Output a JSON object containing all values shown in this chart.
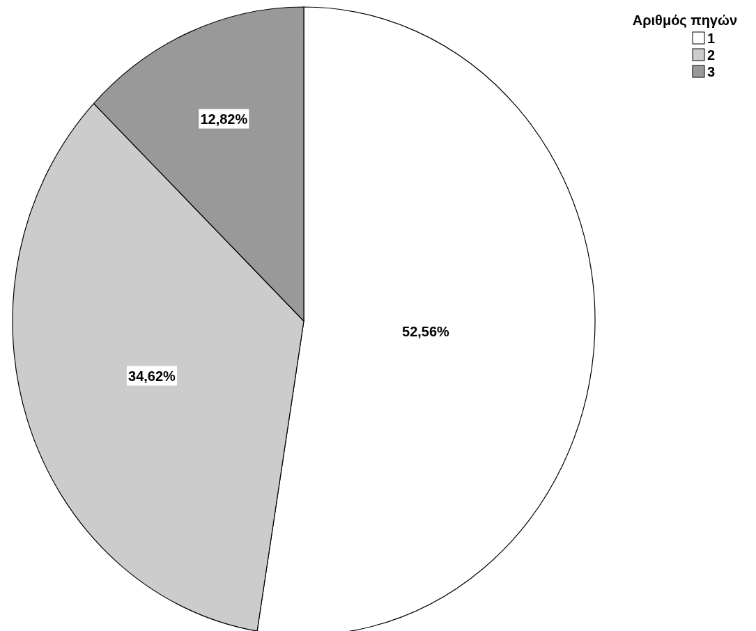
{
  "chart_data": {
    "type": "pie",
    "legend_title": "Αριθμός πηγών",
    "categories": [
      "1",
      "2",
      "3"
    ],
    "values": [
      52.56,
      34.62,
      12.82
    ],
    "colors": [
      "#ffffff",
      "#cccccc",
      "#999999"
    ],
    "value_labels": [
      "52,56%",
      "34,62%",
      "12,82%"
    ],
    "legend": "top right"
  }
}
